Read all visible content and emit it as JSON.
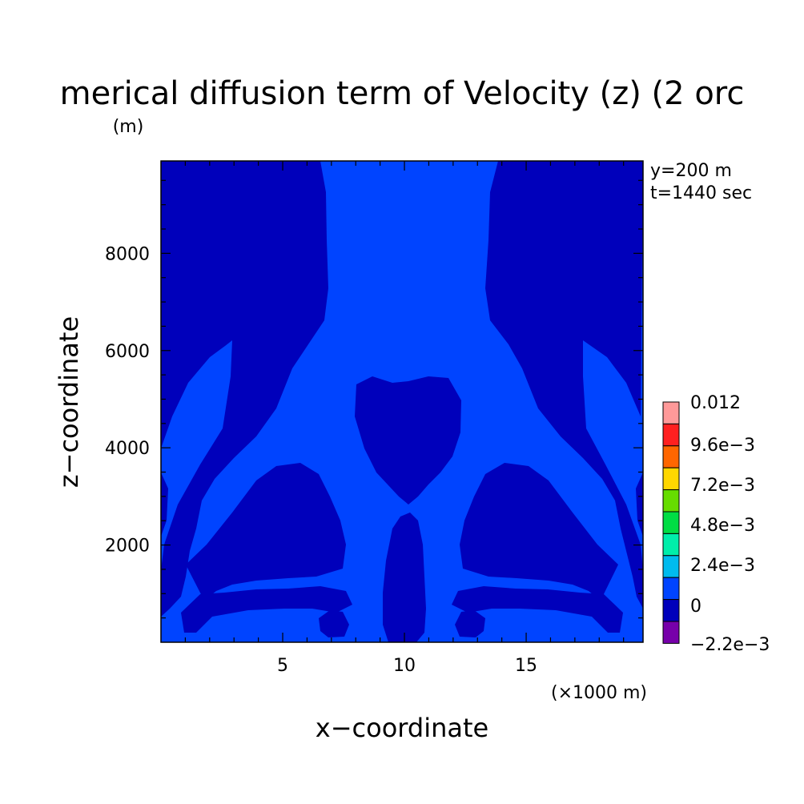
{
  "chart_data": {
    "type": "heatmap",
    "title": "merical diffusion term of Velocity (z) (2 orc",
    "ylabel_units": "(m)",
    "xlabel": "x−coordinate",
    "ylabel": "z−coordinate",
    "x_units": "(×1000 m)",
    "annotation": [
      "y=200 m",
      "t=1440 sec"
    ],
    "xlim": [
      0,
      19.8
    ],
    "ylim": [
      0,
      9900
    ],
    "x_ticks": [
      5,
      10,
      15
    ],
    "x_tick_labels": [
      "5",
      "10",
      "15"
    ],
    "y_ticks": [
      2000,
      4000,
      6000,
      8000
    ],
    "y_tick_labels": [
      "2000",
      "4000",
      "6000",
      "8000"
    ],
    "colorbar": {
      "labels": [
        "0.012",
        "9.6e−3",
        "7.2e−3",
        "4.8e−3",
        "2.4e−3",
        "0",
        "−2.2e−3"
      ],
      "colors": [
        "#ff9999",
        "#ff2020",
        "#ff6600",
        "#ffd700",
        "#66dd00",
        "#00dd44",
        "#00eeaa",
        "#00bbee",
        "#0044ff",
        "#0000bb",
        "#7700aa"
      ]
    },
    "field_colors": {
      "background_level": "#0044ff",
      "negative_level": "#0000bb"
    },
    "grid": false
  }
}
